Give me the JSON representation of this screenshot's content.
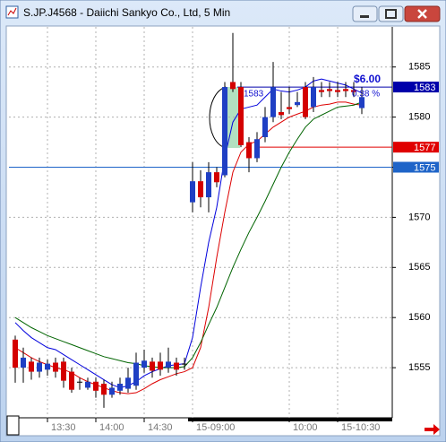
{
  "window_title": "S.JP.J4568 - Daiichi Sankyo Co., Ltd, 5 Min",
  "chart_data": {
    "type": "candlestick",
    "categories": [
      null,
      null,
      null,
      null,
      "13:30",
      null,
      null,
      null,
      null,
      null,
      "14:00",
      null,
      null,
      null,
      null,
      null,
      "14:30",
      null,
      null,
      null,
      null,
      null,
      "15-09:00",
      null,
      null,
      null,
      null,
      null,
      null,
      null,
      null,
      null,
      null,
      null,
      "10:00",
      null,
      null,
      null,
      null,
      null,
      "15-10:30",
      null,
      null,
      null
    ],
    "open": [
      1557.8,
      1555.0,
      1555.6,
      1554.6,
      1554.8,
      1555.5,
      1555.6,
      1554.6,
      1553.6,
      1553.0,
      1553.6,
      1553.4,
      1552.3,
      1552.7,
      1552.9,
      1553.2,
      1555.0,
      1555.6,
      1555.6,
      1555.0,
      1555.5,
      1555.4,
      1571.5,
      1573.6,
      1572.0,
      1574.5,
      1574.2,
      1583.5,
      1583.0,
      1577.5,
      1575.9,
      1578.0,
      1580.0,
      1580.5,
      1581.0,
      1581.2,
      1583.0,
      1581.0,
      1582.7,
      1582.8,
      1582.7,
      1582.8,
      1582.7,
      1580.9
    ],
    "high": [
      1558.2,
      1557.0,
      1556.0,
      1556.0,
      1555.8,
      1556.0,
      1556.0,
      1555.0,
      1554.0,
      1554.0,
      1554.0,
      1553.8,
      1553.6,
      1554.0,
      1555.0,
      1556.5,
      1556.8,
      1556.0,
      1556.5,
      1557.0,
      1556.0,
      1556.0,
      1575.5,
      1574.7,
      1575.5,
      1575.0,
      1583.5,
      1588.4,
      1583.5,
      1578.0,
      1578.5,
      1581.0,
      1585.5,
      1582.5,
      1583.0,
      1582.5,
      1583.5,
      1584.0,
      1583.5,
      1583.5,
      1583.5,
      1583.5,
      1583.5,
      1583.0
    ],
    "low": [
      1553.5,
      1553.5,
      1553.8,
      1554.0,
      1554.2,
      1554.0,
      1553.0,
      1552.5,
      1552.8,
      1552.8,
      1552.0,
      1551.0,
      1552.0,
      1552.3,
      1552.5,
      1552.8,
      1554.5,
      1554.0,
      1554.2,
      1554.5,
      1554.2,
      1554.8,
      1570.5,
      1571.0,
      1570.5,
      1573.0,
      1574.0,
      1582.5,
      1577.0,
      1574.5,
      1575.5,
      1577.5,
      1579.5,
      1579.8,
      1580.3,
      1581.0,
      1579.8,
      1580.5,
      1582.0,
      1582.0,
      1582.0,
      1582.0,
      1582.0,
      1580.3
    ],
    "close": [
      1555.0,
      1556.0,
      1554.6,
      1555.5,
      1555.4,
      1554.6,
      1553.7,
      1552.8,
      1553.6,
      1553.6,
      1552.7,
      1552.3,
      1553.0,
      1553.4,
      1554.0,
      1555.5,
      1555.7,
      1554.7,
      1554.8,
      1555.6,
      1554.8,
      1555.4,
      1573.6,
      1572.0,
      1574.5,
      1573.5,
      1583.0,
      1582.8,
      1577.2,
      1575.9,
      1577.8,
      1580.0,
      1583.0,
      1580.2,
      1580.8,
      1581.5,
      1580.0,
      1583.0,
      1582.5,
      1582.6,
      1582.5,
      1582.6,
      1582.5,
      1582.0
    ],
    "up_color": "#1f3fc4",
    "down_color": "#d40000",
    "lines": [
      {
        "color": "#0000dd",
        "values": [
          1559.5,
          1558.7,
          1558,
          1557.5,
          1557,
          1556.8,
          1556.3,
          1555.8,
          1555.3,
          1554.8,
          1554.3,
          1553.8,
          1553.3,
          1553,
          1553.2,
          1553.6,
          1554.2,
          1554.6,
          1554.9,
          1555.2,
          1555.3,
          1555.4,
          1558,
          1563,
          1567.5,
          1571,
          1576,
          1579.5,
          1580.8,
          1581,
          1581.2,
          1582,
          1582.8,
          1582.6,
          1582.5,
          1582.7,
          1583,
          1583.6,
          1583.8,
          1583.6,
          1583.4,
          1583.2,
          1582.8,
          1582.4
        ]
      },
      {
        "color": "#dd0000",
        "values": [
          1557,
          1556.5,
          1556,
          1555.6,
          1555.3,
          1555,
          1554.8,
          1554.5,
          1554,
          1553.6,
          1553.3,
          1553,
          1552.7,
          1552.5,
          1552.4,
          1552.5,
          1552.9,
          1553.4,
          1553.8,
          1554.1,
          1554.4,
          1554.6,
          1555,
          1557,
          1561,
          1566,
          1570.5,
          1574.5,
          1576.5,
          1577.3,
          1577.6,
          1578.3,
          1579,
          1579.5,
          1580,
          1580.3,
          1580.6,
          1581,
          1581.2,
          1581.3,
          1581.5,
          1581.5,
          1581.3,
          1581.2
        ]
      },
      {
        "color": "#006400",
        "values": [
          1560,
          1559.5,
          1559,
          1558.6,
          1558.2,
          1557.9,
          1557.6,
          1557.3,
          1557,
          1556.7,
          1556.4,
          1556.1,
          1555.9,
          1555.7,
          1555.5,
          1555.4,
          1555.2,
          1555.1,
          1555,
          1555,
          1555,
          1555.1,
          1556,
          1557.5,
          1559.3,
          1561,
          1563,
          1565,
          1566.8,
          1568.5,
          1570,
          1571.6,
          1573.3,
          1575,
          1576.5,
          1577.8,
          1579,
          1579.8,
          1580.2,
          1580.6,
          1581,
          1581.1,
          1581.2,
          1581.5
        ]
      }
    ],
    "levels": [
      {
        "value": 1583,
        "color": "#0000aa"
      },
      {
        "value": 1577,
        "color": "#e00000"
      },
      {
        "value": 1575,
        "color": "#1e64c8"
      }
    ],
    "change": "$6.00",
    "change_pct": "0.38 %",
    "ylim": [
      1550,
      1589
    ],
    "yticks": [
      1555,
      1560,
      1565,
      1570,
      1575,
      1580,
      1585
    ],
    "grid": true
  }
}
